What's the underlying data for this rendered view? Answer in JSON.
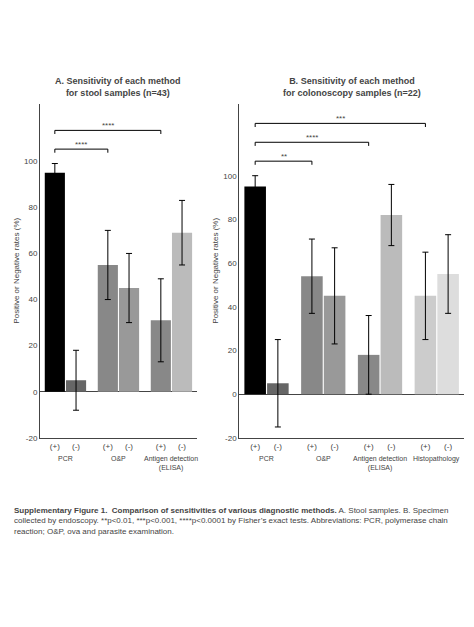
{
  "chart_data": [
    {
      "type": "bar",
      "title": "A. Sensitivity of each method\nfor stool samples (n=43)",
      "categories": [
        "(+)",
        "(-)",
        "(+)",
        "(-)",
        "(+)",
        "(-)"
      ],
      "groups": [
        "PCR",
        "O&P",
        "Antigen detection\n(ELISA)"
      ],
      "values": [
        95,
        5,
        55,
        45,
        31,
        69
      ],
      "errors": [
        4,
        13,
        15,
        15,
        18,
        14
      ],
      "colors": [
        "#000000",
        "#666666",
        "#888888",
        "#999999",
        "#888888",
        "#bbbbbb"
      ],
      "annotations": [
        {
          "from_bar": 0,
          "to_bar": 2,
          "text": "****"
        },
        {
          "from_bar": 0,
          "to_bar": 4,
          "text": "****"
        }
      ],
      "ylabel": "Positive or Negative rates (%)",
      "ylim": [
        -20,
        125
      ],
      "yticks": [
        -20,
        0,
        20,
        40,
        60,
        80,
        100
      ],
      "grid": false
    },
    {
      "type": "bar",
      "title": "B. Sensitivity of each method\nfor colonoscopy samples (n=22)",
      "categories": [
        "(+)",
        "(-)",
        "(+)",
        "(-)",
        "(+)",
        "(-)",
        "(+)",
        "(-)"
      ],
      "groups": [
        "PCR",
        "O&P",
        "Antigen detection\n(ELISA)",
        "Histopathology"
      ],
      "values": [
        95,
        5,
        54,
        45,
        18,
        82,
        45,
        55
      ],
      "errors": [
        5,
        20,
        17,
        22,
        18,
        14,
        20,
        18
      ],
      "colors": [
        "#000000",
        "#666666",
        "#888888",
        "#999999",
        "#888888",
        "#bbbbbb",
        "#cccccc",
        "#dddddd"
      ],
      "annotations": [
        {
          "from_bar": 0,
          "to_bar": 2,
          "text": "**"
        },
        {
          "from_bar": 0,
          "to_bar": 4,
          "text": "****"
        },
        {
          "from_bar": 0,
          "to_bar": 6,
          "text": "***"
        }
      ],
      "ylabel": "Positive or Negative rates (%)",
      "ylim": [
        -20,
        133
      ],
      "yticks": [
        -20,
        0,
        20,
        40,
        60,
        80,
        100
      ],
      "grid": false
    }
  ],
  "caption_bold": "Supplementary Figure 1.  Comparison of sensitivities of various diagnostic methods.",
  "caption_normal": " A. Stool samples. B. Specimen collected by endoscopy. **p<0.01, ***p<0.001, ****p<0.0001 by Fisher’s exact tests. Abbreviations: PCR, polymerase chain reaction; O&P, ova and parasite examination."
}
